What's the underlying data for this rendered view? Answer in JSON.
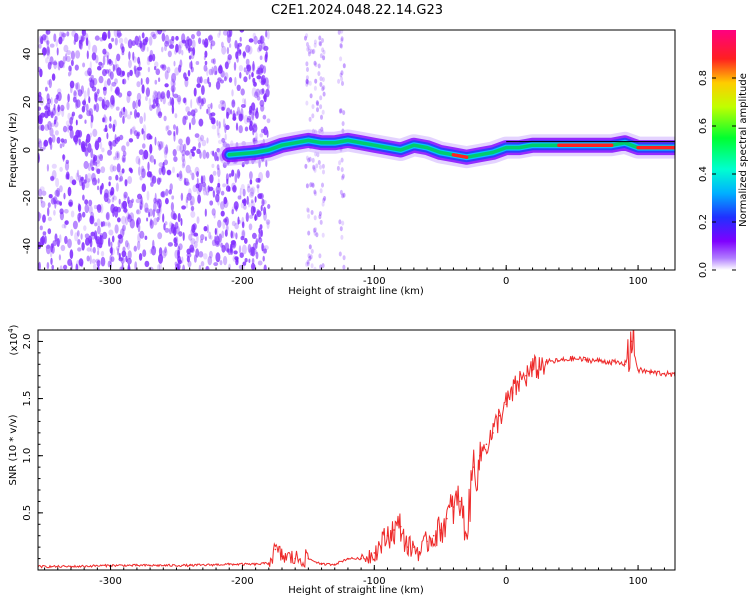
{
  "title": "C2E1.2024.048.22.14.G23",
  "colors": {
    "snr_line": "#ee2a2a",
    "spectrogram_noise": "#7f2bff",
    "spectrogram_trace": "#00cc66",
    "spectrogram_peak": "#ff2020"
  },
  "colorbar": {
    "label": "Normalized spectral amplitude",
    "ticks": [
      "0.0",
      "0.2",
      "0.4",
      "0.6",
      "0.8"
    ],
    "range": [
      0,
      1
    ],
    "colormap": "rainbow (white-violet-blue-cyan-green-yellow-red-magenta)"
  },
  "chart_data": [
    {
      "type": "heatmap",
      "title": "",
      "xlabel": "Height of straight line (km)",
      "ylabel": "Frequency (Hz)",
      "xlim": [
        -355,
        128
      ],
      "ylim": [
        -50,
        50
      ],
      "xticks": [
        "-300",
        "-200",
        "-100",
        "0",
        "100"
      ],
      "yticks": [
        "-40",
        "-20",
        "0",
        "20",
        "40"
      ],
      "grid": false,
      "description_noise_region_x": [
        -355,
        -180
      ],
      "ridge": {
        "x": [
          -210,
          -190,
          -180,
          -170,
          -160,
          -150,
          -140,
          -130,
          -120,
          -110,
          -100,
          -90,
          -80,
          -70,
          -60,
          -50,
          -40,
          -30,
          -20,
          -10,
          0,
          10,
          20,
          40,
          60,
          80,
          90,
          100,
          110,
          128
        ],
        "y": [
          -2,
          -1,
          0,
          2,
          3,
          4,
          3,
          3,
          4,
          3,
          2,
          1,
          0,
          2,
          1,
          -1,
          -2,
          -3,
          -2,
          -1,
          1,
          1,
          2,
          2,
          2,
          2,
          3,
          1,
          1,
          1
        ]
      }
    },
    {
      "type": "line",
      "title": "",
      "xlabel": "Height of straight line (km)",
      "ylabel": "SNR (10 * v/v)",
      "multiplier": "(x10",
      "multiplier_exp": "4",
      "multiplier_close": ")",
      "xlim": [
        -355,
        128
      ],
      "ylim": [
        0,
        2.1
      ],
      "xticks": [
        "-300",
        "-200",
        "-100",
        "0",
        "100"
      ],
      "yticks": [
        "0.5",
        "1.0",
        "1.5",
        "2.0"
      ],
      "grid": false,
      "series": [
        {
          "x": [
            -355,
            -330,
            -300,
            -270,
            -240,
            -210,
            -190,
            -180,
            -175,
            -170,
            -160,
            -150,
            -140,
            -130,
            -120,
            -110,
            -100,
            -90,
            -85,
            -80,
            -75,
            -70,
            -65,
            -60,
            -55,
            -50,
            -45,
            -40,
            -35,
            -30,
            -25,
            -20,
            -15,
            -10,
            -5,
            0,
            5,
            10,
            15,
            20,
            25,
            30,
            40,
            50,
            60,
            70,
            80,
            90,
            95,
            100,
            110,
            120,
            128
          ],
          "y": [
            0.03,
            0.03,
            0.04,
            0.04,
            0.04,
            0.05,
            0.05,
            0.06,
            0.18,
            0.12,
            0.1,
            0.1,
            0.05,
            0.05,
            0.1,
            0.1,
            0.15,
            0.3,
            0.35,
            0.38,
            0.2,
            0.2,
            0.15,
            0.25,
            0.3,
            0.35,
            0.45,
            0.55,
            0.6,
            0.3,
            0.9,
            1.0,
            1.1,
            1.2,
            1.35,
            1.45,
            1.55,
            1.65,
            1.7,
            1.75,
            1.78,
            1.82,
            1.83,
            1.85,
            1.84,
            1.83,
            1.82,
            1.8,
            2.0,
            1.75,
            1.73,
            1.72,
            1.7
          ]
        }
      ]
    }
  ]
}
